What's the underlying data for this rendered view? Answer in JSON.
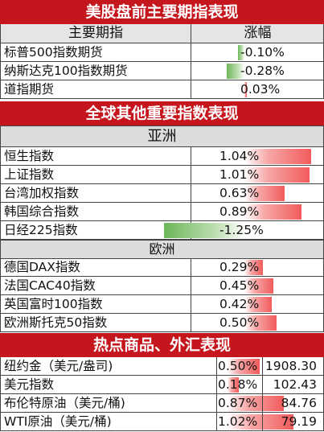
{
  "sections": {
    "us_title": "美股盘前主要期指表现",
    "global_title": "全球其他重要指数表现",
    "asia_label": "亚洲",
    "europe_label": "欧洲",
    "commodity_title": "热点商品、外汇表现"
  },
  "us_header": {
    "name_col": "主要期指",
    "change_col": "涨幅"
  },
  "us_futures": [
    {
      "name": "标普500指数期货",
      "change": "-0.10%",
      "value": -0.1
    },
    {
      "name": "纳斯达克100指数期货",
      "change": "-0.28%",
      "value": -0.28
    },
    {
      "name": "道指期货",
      "change": "0.03%",
      "value": 0.03
    }
  ],
  "asia": [
    {
      "name": "恒生指数",
      "change": "1.04%",
      "value": 1.04
    },
    {
      "name": "上证指数",
      "change": "1.01%",
      "value": 1.01
    },
    {
      "name": "台湾加权指数",
      "change": "0.63%",
      "value": 0.63
    },
    {
      "name": "韩国综合指数",
      "change": "0.89%",
      "value": 0.89
    },
    {
      "name": "日经225指数",
      "change": "-1.25%",
      "value": -1.25
    }
  ],
  "europe": [
    {
      "name": "德国DAX指数",
      "change": "0.29%",
      "value": 0.29
    },
    {
      "name": "法国CAC40指数",
      "change": "0.45%",
      "value": 0.45
    },
    {
      "name": "英国富时100指数",
      "change": "0.42%",
      "value": 0.42
    },
    {
      "name": "欧洲斯托克50指数",
      "change": "0.50%",
      "value": 0.5
    }
  ],
  "commodities": [
    {
      "name": "纽约金（美元/盎司)",
      "change": "0.50%",
      "value": 0.5,
      "price": "1908.30"
    },
    {
      "name": "美元指数",
      "change": "0.18%",
      "value": 0.18,
      "price": "102.43"
    },
    {
      "name": "布伦特原油（美元/桶)",
      "change": "0.87%",
      "value": 0.87,
      "price": "84.76"
    },
    {
      "name": "WTI原油（美元/桶)",
      "change": "1.02%",
      "value": 1.02,
      "price": "79.19"
    }
  ],
  "colors": {
    "header_red": "#c4161c",
    "up_bar": "#f15b5b",
    "down_bar": "#6cb65a"
  }
}
